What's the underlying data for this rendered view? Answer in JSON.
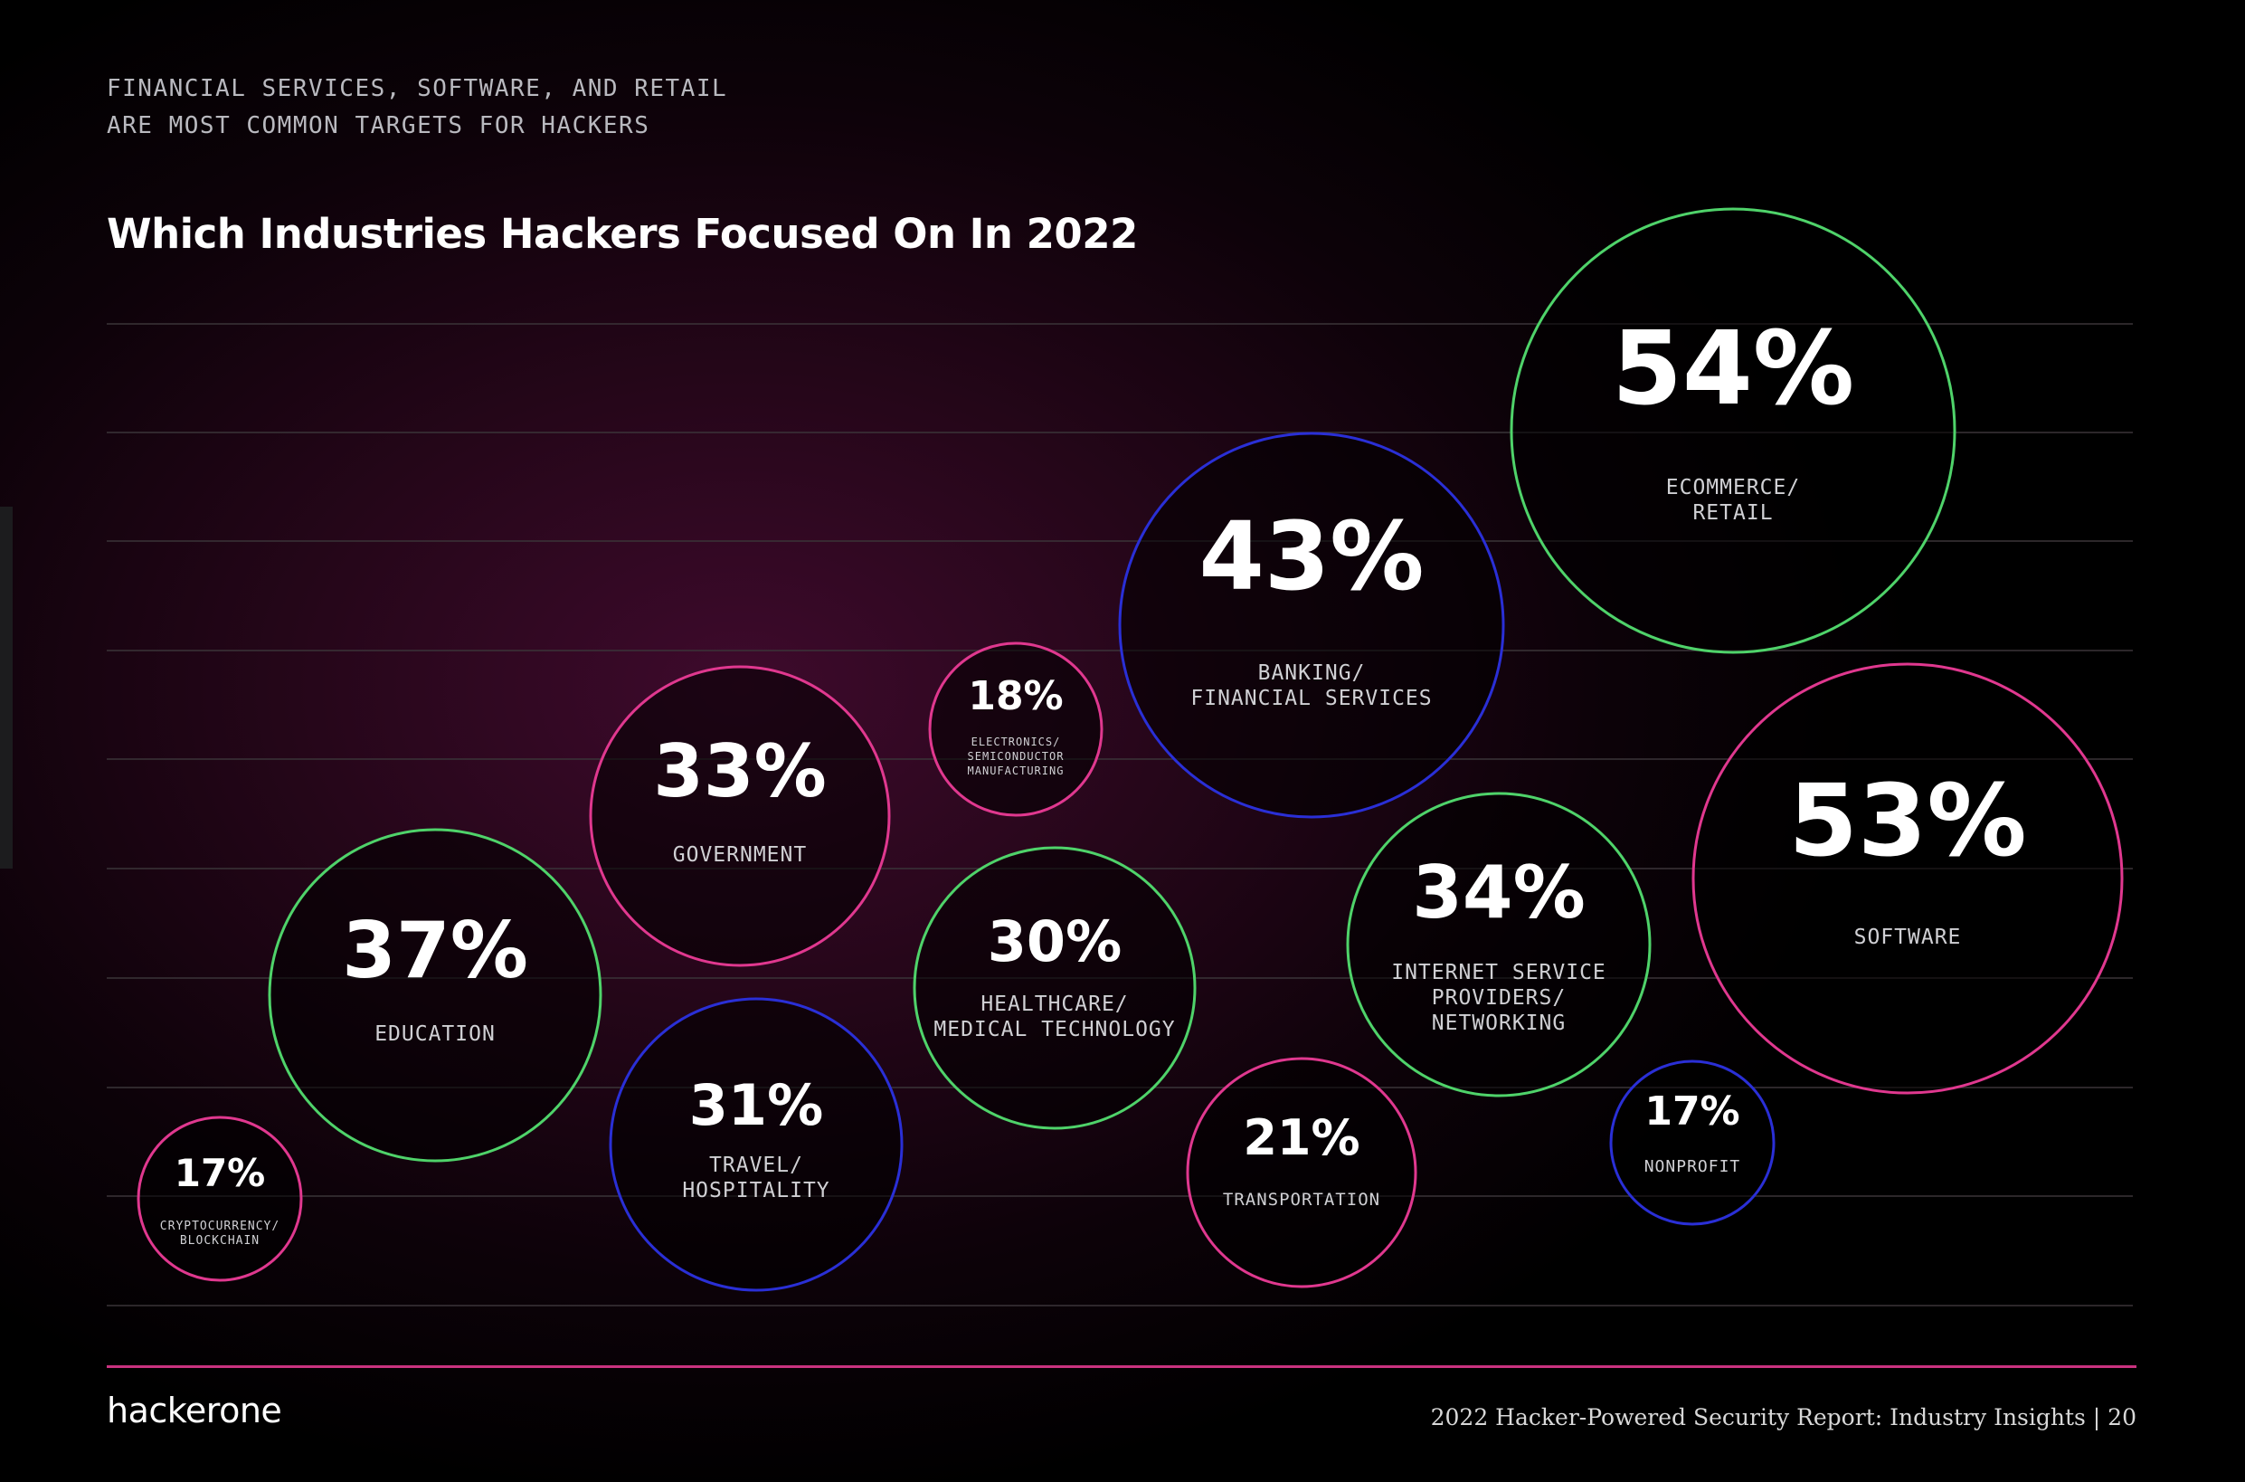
{
  "header": {
    "subtitle": "FINANCIAL SERVICES, SOFTWARE, AND RETAIL\nARE MOST COMMON TARGETS FOR HACKERS",
    "title": "Which Industries Hackers Focused On In 2022"
  },
  "footer": {
    "logo": "hackerone",
    "report": "2022 Hacker-Powered Security Report: Industry Insights  |  20"
  },
  "colors": {
    "green": "#4fd36a",
    "pink": "#e0388f",
    "blue": "#2a2fd6",
    "rule": "#c9327f"
  },
  "chart_data": {
    "type": "bubble",
    "title": "Which Industries Hackers Focused On In 2022",
    "unit": "%",
    "grid": true,
    "items": [
      {
        "label": "CRYPTOCURRENCY/\nBLOCKCHAIN",
        "value": 17,
        "color": "pink"
      },
      {
        "label": "EDUCATION",
        "value": 37,
        "color": "green"
      },
      {
        "label": "GOVERNMENT",
        "value": 33,
        "color": "pink"
      },
      {
        "label": "TRAVEL/\nHOSPITALITY",
        "value": 31,
        "color": "blue"
      },
      {
        "label": "ELECTRONICS/\nSEMICONDUCTOR\nMANUFACTURING",
        "value": 18,
        "color": "pink"
      },
      {
        "label": "HEALTHCARE/\nMEDICAL TECHNOLOGY",
        "value": 30,
        "color": "green"
      },
      {
        "label": "TRANSPORTATION",
        "value": 21,
        "color": "pink"
      },
      {
        "label": "BANKING/\nFINANCIAL SERVICES",
        "value": 43,
        "color": "blue"
      },
      {
        "label": "INTERNET SERVICE\nPROVIDERS/\nNETWORKING",
        "value": 34,
        "color": "green"
      },
      {
        "label": "NONPROFIT",
        "value": 17,
        "color": "blue"
      },
      {
        "label": "ECOMMERCE/\nRETAIL",
        "value": 54,
        "color": "green"
      },
      {
        "label": "SOFTWARE",
        "value": 53,
        "color": "pink"
      }
    ]
  }
}
